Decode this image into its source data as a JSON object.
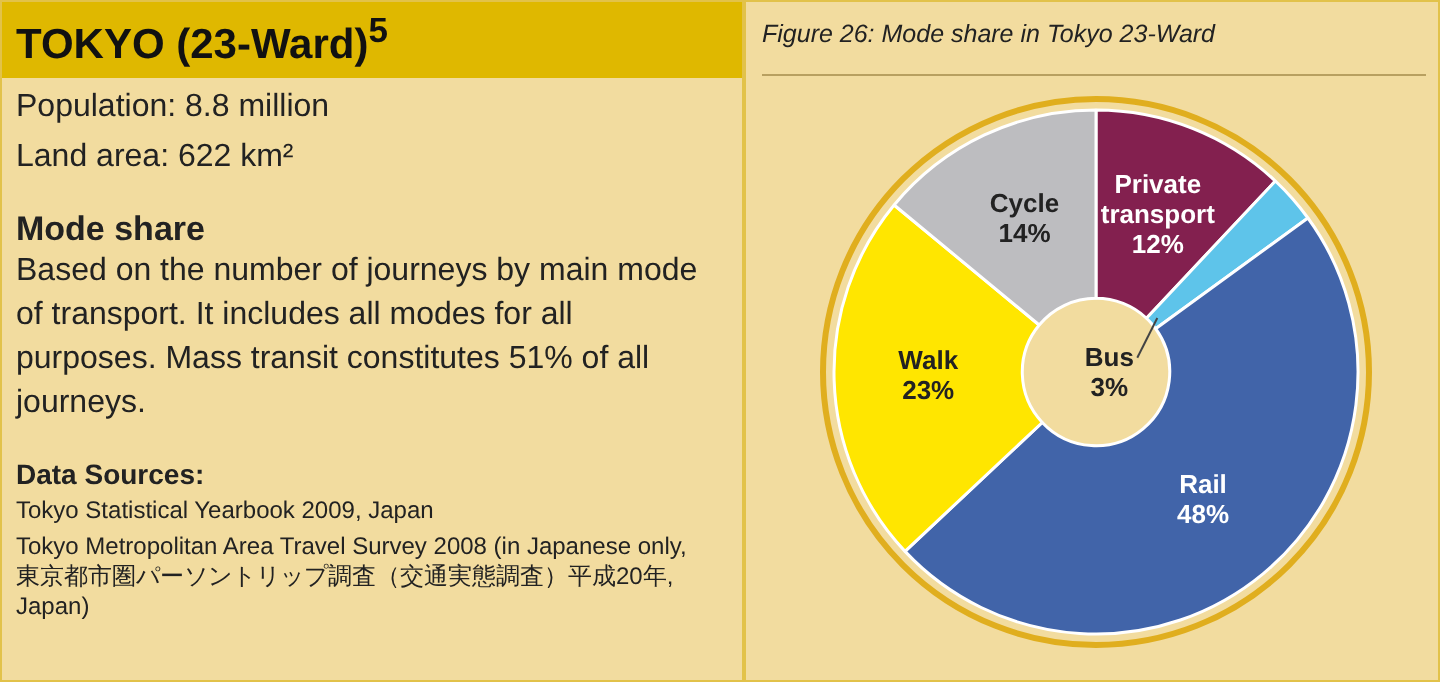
{
  "chart_data": [
    {
      "type": "other",
      "title": "TOKYO (23-Ward)$^{5}$",
      "annotations": [
        "Population: 8.8  million",
        "Land area: 622 km²",
        "Mode share",
        "Based on the number of journeys by main mode of transport. It includes all modes for all purposes. Mass transit constitutes 51% of all journeys.",
        "Data Sources:",
        "Tokyo Statistical Yearbook 2009, Japan",
        "Tokyo Metropolitan Area Travel Survey 2008 (in Japanese only, 東京都市圏パーソントリップ調査（交通実態調査）平成20年, Japan)"
      ]
    },
    {
      "type": "donut",
      "title": "Figure 26: Mode share in Tokyo 23-Ward",
      "categories": [
        "Private transport",
        "Bus",
        "Rail",
        "Walk",
        "Cycle"
      ],
      "values": [
        12,
        3,
        48,
        23,
        14
      ],
      "colors": [
        "#83204f",
        "#5ec4ea",
        "#4164a9",
        "#ffe600",
        "#bdbdc0"
      ],
      "value_labels": [
        "12%",
        "3%",
        "48%",
        "23%",
        "14%"
      ],
      "legend": false
    }
  ]
}
